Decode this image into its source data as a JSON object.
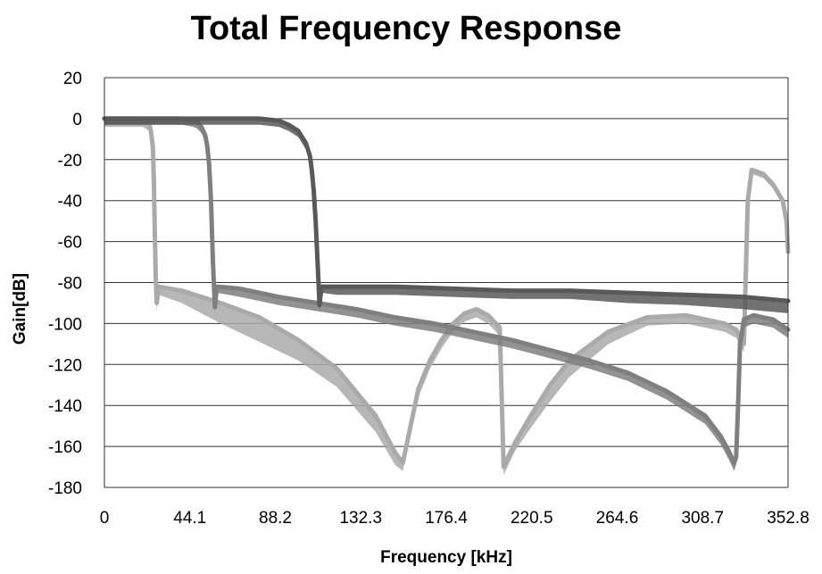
{
  "chart_data": {
    "type": "line",
    "title": "Total Frequency Response",
    "xlabel": "Frequency [kHz]",
    "ylabel": "Gain[dB]",
    "xlim": [
      0,
      352.8
    ],
    "ylim": [
      -180,
      20
    ],
    "x_ticks": [
      "0",
      "44.1",
      "88.2",
      "132.3",
      "176.4",
      "220.5",
      "264.6",
      "308.7",
      "352.8"
    ],
    "y_ticks": [
      "20",
      "0",
      "-20",
      "-40",
      "-60",
      "-80",
      "-100",
      "-120",
      "-140",
      "-160",
      "-180"
    ],
    "grid": "horizontal",
    "legend": "none",
    "series": [
      {
        "color": "#aaaaaa",
        "x": [
          0,
          20,
          23,
          24,
          25,
          25.5,
          26,
          26.5,
          27,
          28,
          40,
          60,
          80,
          100,
          120,
          140,
          150,
          154,
          158,
          162,
          168,
          174,
          180,
          186,
          192,
          198,
          204,
          206,
          212,
          220,
          230,
          240,
          260,
          280,
          300,
          320,
          326,
          330,
          332,
          334,
          340,
          345,
          350,
          352,
          352.8
        ],
        "y": [
          0,
          0,
          -2,
          -6,
          -14,
          -30,
          -55,
          -78,
          -90,
          -82,
          -84,
          -90,
          -97,
          -108,
          -122,
          -145,
          -163,
          -168,
          -150,
          -132,
          -118,
          -108,
          -100,
          -95,
          -93,
          -96,
          -102,
          -170,
          -158,
          -145,
          -130,
          -118,
          -104,
          -97,
          -96,
          -100,
          -103,
          -110,
          -40,
          -25,
          -27,
          -32,
          -40,
          -50,
          -65
        ],
        "envelope": [
          -4,
          -4,
          -4,
          -4,
          -4,
          -4,
          -4,
          -4,
          -4,
          -4,
          -6,
          -10,
          -12,
          -10,
          -9,
          -8,
          -6,
          -4,
          -4,
          -4,
          -4,
          -4,
          -4,
          -4,
          -4,
          -4,
          -4,
          -4,
          -4,
          -6,
          -8,
          -8,
          -6,
          -4,
          -4,
          -4,
          -4,
          -4,
          -2,
          -2,
          -2,
          -2,
          -2,
          -2,
          -2
        ]
      },
      {
        "color": "#7f7f7f",
        "x": [
          0,
          40,
          46,
          48,
          50,
          52,
          53,
          54,
          55,
          56,
          57,
          58,
          70,
          90,
          110,
          130,
          150,
          170,
          190,
          210,
          230,
          250,
          270,
          290,
          310,
          318,
          322,
          325,
          326,
          327,
          328,
          330,
          335,
          340,
          345,
          352.8
        ],
        "y": [
          0,
          0,
          -1,
          -2,
          -4,
          -8,
          -13,
          -22,
          -40,
          -70,
          -92,
          -82,
          -83,
          -87,
          -90,
          -93,
          -97,
          -100,
          -104,
          -108,
          -113,
          -118,
          -124,
          -133,
          -145,
          -155,
          -162,
          -168,
          -165,
          -140,
          -110,
          -98,
          -96,
          -97,
          -98,
          -103
        ],
        "envelope": [
          -3,
          -3,
          -3,
          -3,
          -3,
          -3,
          -3,
          -3,
          -3,
          -3,
          -3,
          -3,
          -4,
          -4,
          -4,
          -4,
          -4,
          -4,
          -4,
          -4,
          -4,
          -4,
          -4,
          -4,
          -4,
          -4,
          -4,
          -4,
          -4,
          -4,
          -4,
          -4,
          -4,
          -4,
          -4,
          -4
        ]
      },
      {
        "color": "#595959",
        "x": [
          0,
          80,
          90,
          95,
          100,
          104,
          106,
          107,
          108,
          109,
          110,
          111,
          112,
          120,
          150,
          180,
          210,
          240,
          270,
          300,
          330,
          352.8
        ],
        "y": [
          0,
          0,
          -1,
          -3,
          -6,
          -12,
          -18,
          -25,
          -35,
          -50,
          -70,
          -91,
          -82,
          -82,
          -82,
          -83,
          -84,
          -84,
          -85,
          -86,
          -87,
          -89
        ],
        "envelope": [
          -3,
          -3,
          -3,
          -3,
          -3,
          -3,
          -3,
          -3,
          -3,
          -3,
          -3,
          -3,
          -3,
          -4,
          -4,
          -4,
          -4,
          -4,
          -5,
          -5,
          -6,
          -6
        ]
      }
    ]
  }
}
